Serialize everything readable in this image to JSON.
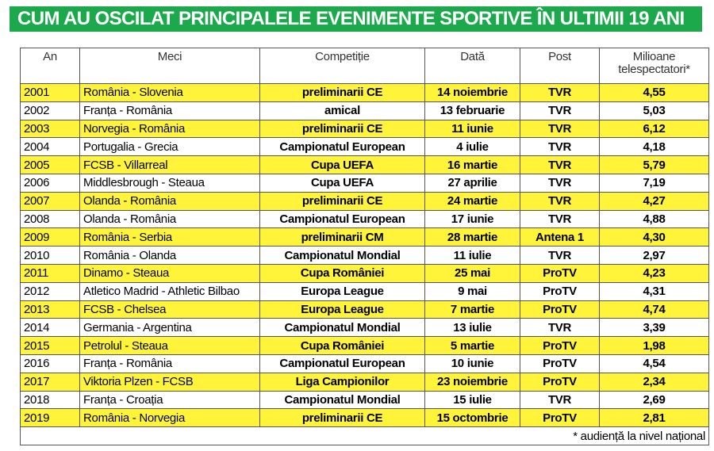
{
  "header": {
    "title": "CUM AU OSCILAT PRINCIPALELE EVENIMENTE SPORTIVE ÎN ULTIMII 19 ANI"
  },
  "table": {
    "columns": [
      "An",
      "Meci",
      "Competiție",
      "Dată",
      "Post",
      "Milioane telespectatori*"
    ],
    "rows": [
      [
        "2001",
        "România - Slovenia",
        "preliminarii CE",
        "14 noiembrie",
        "TVR",
        "4,55"
      ],
      [
        "2002",
        "Franța - România",
        "amical",
        "13 februarie",
        "TVR",
        "5,03"
      ],
      [
        "2003",
        "Norvegia - România",
        "preliminarii CE",
        "11 iunie",
        "TVR",
        "6,12"
      ],
      [
        "2004",
        "Portugalia - Grecia",
        "Campionatul European",
        "4 iulie",
        "TVR",
        "4,18"
      ],
      [
        "2005",
        "FCSB - Villarreal",
        "Cupa UEFA",
        "16 martie",
        "TVR",
        "5,79"
      ],
      [
        "2006",
        "Middlesbrough - Steaua",
        "Cupa UEFA",
        "27 aprilie",
        "TVR",
        "7,19"
      ],
      [
        "2007",
        "Olanda - România",
        "preliminarii CE",
        "24 martie",
        "TVR",
        "4,27"
      ],
      [
        "2008",
        "Olanda - România",
        "Campionatul European",
        "17 iunie",
        "TVR",
        "4,88"
      ],
      [
        "2009",
        "România - Serbia",
        "preliminarii CM",
        "28 martie",
        "Antena 1",
        "4,30"
      ],
      [
        "2010",
        "România - Olanda",
        "Campionatul Mondial",
        "11 iulie",
        "TVR",
        "2,97"
      ],
      [
        "2011",
        "Dinamo - Steaua",
        "Cupa României",
        "25 mai",
        "ProTV",
        "4,23"
      ],
      [
        "2012",
        "Atletico Madrid - Athletic Bilbao",
        "Europa League",
        "9 mai",
        "ProTV",
        "4,31"
      ],
      [
        "2013",
        "FCSB - Chelsea",
        "Europa League",
        "7 martie",
        "ProTV",
        "4,74"
      ],
      [
        "2014",
        "Germania - Argentina",
        "Campionatul Mondial",
        "13 iulie",
        "TVR",
        "3,39"
      ],
      [
        "2015",
        "Petrolul - Steaua",
        "Cupa României",
        "5 martie",
        "ProTV",
        "1,98"
      ],
      [
        "2016",
        "Franța - România",
        "Campionatul European",
        "10 iunie",
        "ProTV",
        "4,54"
      ],
      [
        "2017",
        "Viktoria Plzen - FCSB",
        "Liga Campionilor",
        "23 noiembrie",
        "ProTV",
        "2,34"
      ],
      [
        "2018",
        "Franța - Croația",
        "Campionatul Mondial",
        "15 iulie",
        "TVR",
        "2,69"
      ],
      [
        "2019",
        "România - Norvegia",
        "preliminarii CE",
        "15 octombrie",
        "ProTV",
        "2,81"
      ]
    ],
    "footnote": "* audiență la nivel național"
  }
}
